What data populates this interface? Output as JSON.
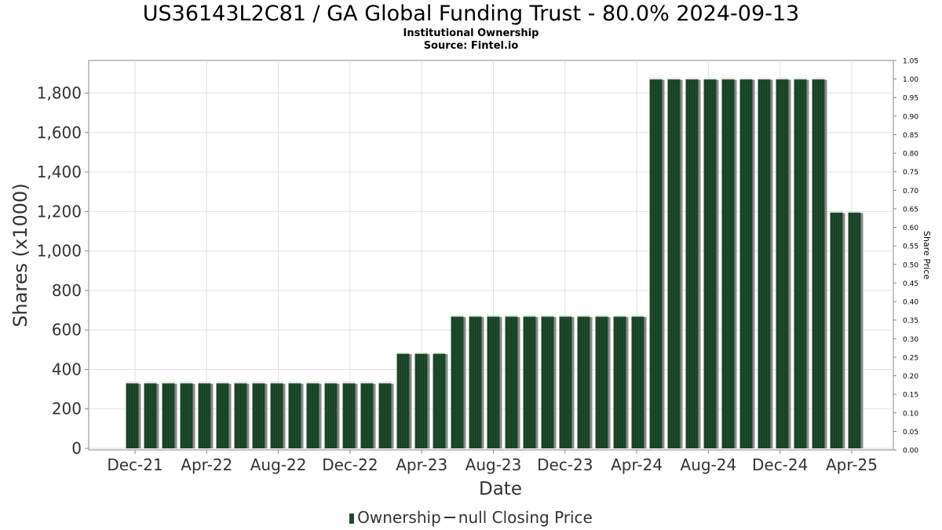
{
  "chart_data": {
    "type": "bar",
    "title": "US36143L2C81 / GA Global Funding Trust - 80.0% 2024-09-13",
    "subtitle": "Institutional Ownership",
    "source": "Source: Fintel.io",
    "xlabel": "Date",
    "ylabel": "Shares (x1000)",
    "y2label": "Share Price",
    "ylim": [
      0,
      1960
    ],
    "y2lim": [
      0,
      1.05
    ],
    "yticks": [
      0,
      200,
      400,
      600,
      800,
      1000,
      1200,
      1400,
      1600,
      1800
    ],
    "ytick_labels": [
      "0",
      "200",
      "400",
      "600",
      "800",
      "1,000",
      "1,200",
      "1,400",
      "1,600",
      "1,800"
    ],
    "y2ticks": [
      0,
      0.05,
      0.1,
      0.15,
      0.2,
      0.25,
      0.3,
      0.35,
      0.4,
      0.45,
      0.5,
      0.55,
      0.6,
      0.65,
      0.7,
      0.75,
      0.8,
      0.85,
      0.9,
      0.95,
      1.0,
      1.05
    ],
    "y2tick_labels": [
      "0.00",
      "0.05",
      "0.10",
      "0.15",
      "0.20",
      "0.25",
      "0.30",
      "0.35",
      "0.40",
      "0.45",
      "0.50",
      "0.55",
      "0.60",
      "0.65",
      "0.70",
      "0.75",
      "0.80",
      "0.85",
      "0.90",
      "0.95",
      "1.00",
      "1.05"
    ],
    "xticks": [
      "Dec-21",
      "Apr-22",
      "Aug-22",
      "Dec-22",
      "Apr-23",
      "Aug-23",
      "Dec-23",
      "Apr-24",
      "Aug-24",
      "Dec-24",
      "Apr-25"
    ],
    "grid": true,
    "legend_position": "bottom",
    "series": [
      {
        "name": "Ownership",
        "color": "#1e4a2c",
        "values": [
          335,
          335,
          335,
          335,
          335,
          335,
          335,
          335,
          335,
          335,
          335,
          335,
          335,
          335,
          335,
          485,
          485,
          485,
          673,
          673,
          673,
          673,
          673,
          673,
          673,
          673,
          673,
          673,
          673,
          1875,
          1875,
          1875,
          1875,
          1875,
          1875,
          1875,
          1875,
          1875,
          1875,
          1200,
          1200
        ]
      },
      {
        "name": "null Closing Price",
        "color": "#333333",
        "values": []
      }
    ]
  }
}
